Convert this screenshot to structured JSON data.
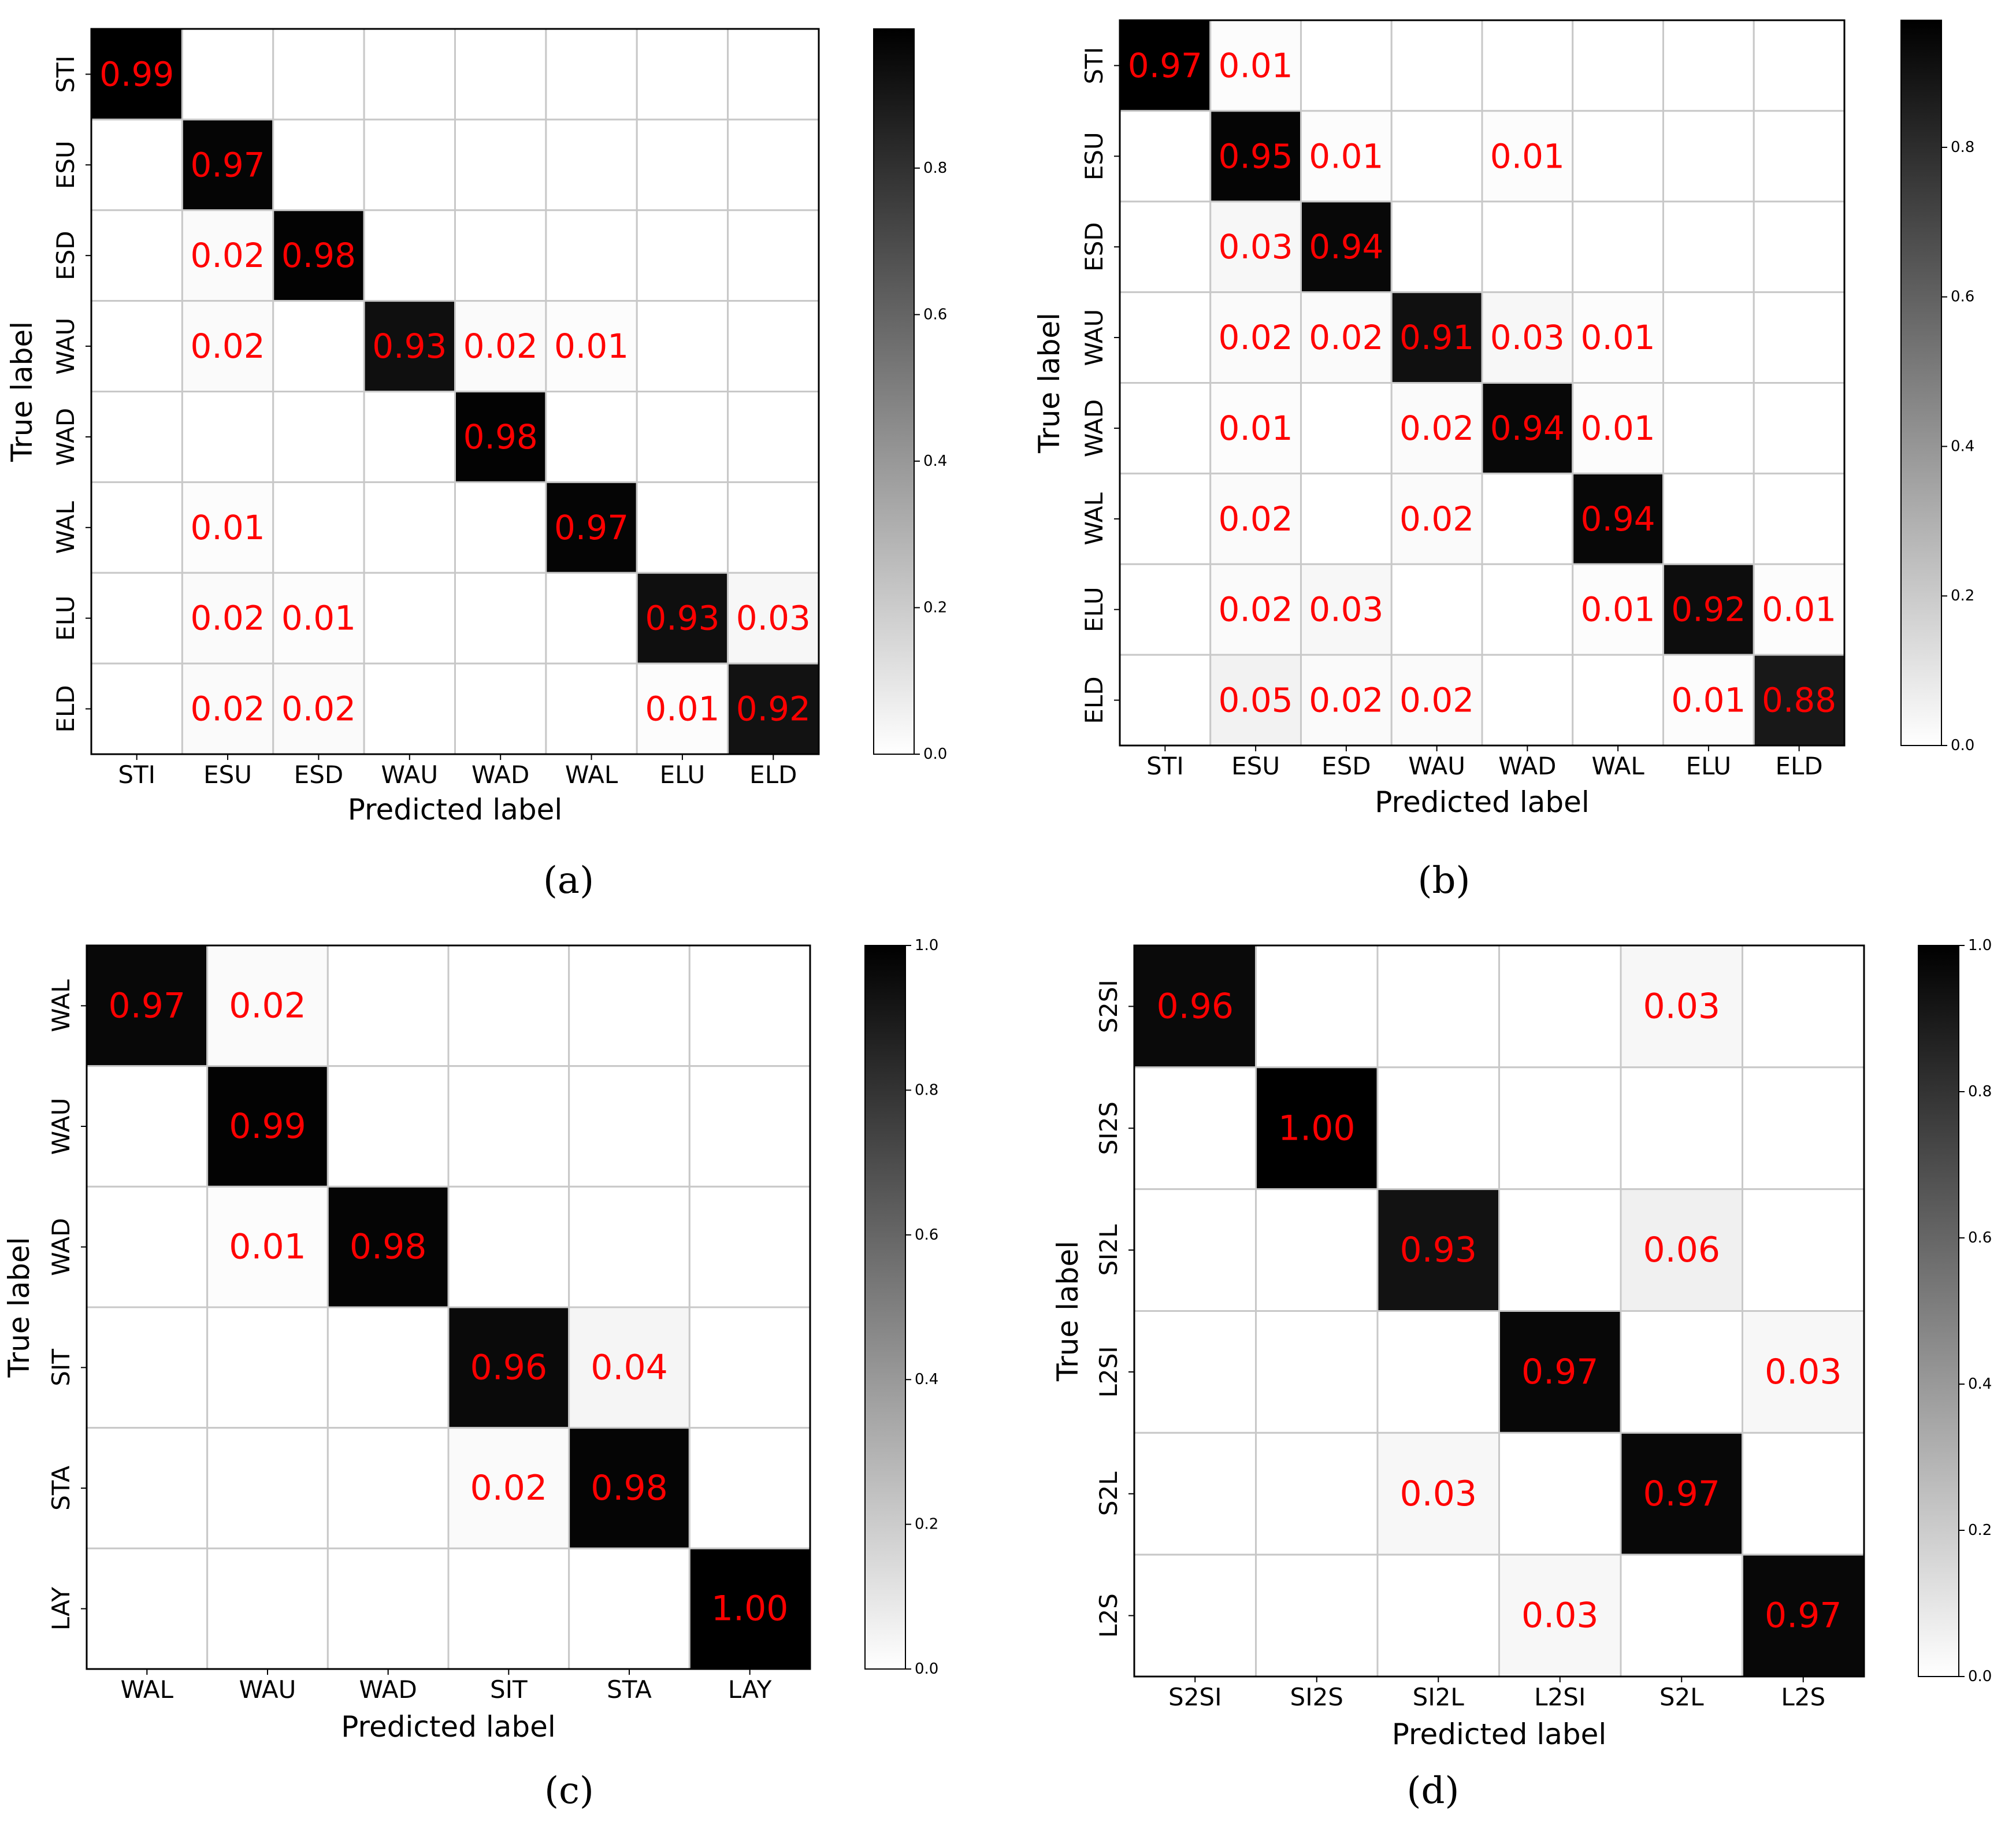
{
  "chart_data": [
    {
      "type": "heatmap",
      "caption": "(a)",
      "xlabel": "Predicted label",
      "ylabel": "True label",
      "x_categories": [
        "STI",
        "ESU",
        "ESD",
        "WAU",
        "WAD",
        "WAL",
        "ELU",
        "ELD"
      ],
      "y_categories": [
        "STI",
        "ESU",
        "ESD",
        "WAU",
        "WAD",
        "WAL",
        "ELU",
        "ELD"
      ],
      "values": [
        [
          0.99,
          0,
          0,
          0,
          0,
          0,
          0,
          0
        ],
        [
          0,
          0.97,
          0,
          0,
          0,
          0,
          0,
          0
        ],
        [
          0,
          0.02,
          0.98,
          0,
          0,
          0,
          0,
          0
        ],
        [
          0,
          0.02,
          0,
          0.93,
          0.02,
          0.01,
          0,
          0
        ],
        [
          0,
          0,
          0,
          0,
          0.98,
          0,
          0,
          0
        ],
        [
          0,
          0.01,
          0,
          0,
          0,
          0.97,
          0,
          0
        ],
        [
          0,
          0.02,
          0.01,
          0,
          0,
          0,
          0.93,
          0.03
        ],
        [
          0,
          0.02,
          0.02,
          0,
          0,
          0,
          0.01,
          0.92
        ]
      ],
      "colorbar": {
        "range": [
          0,
          0.99
        ],
        "ticks": [
          "0.0",
          "0.2",
          "0.4",
          "0.6",
          "0.8"
        ]
      }
    },
    {
      "type": "heatmap",
      "caption": "(b)",
      "xlabel": "Predicted label",
      "ylabel": "True label",
      "x_categories": [
        "STI",
        "ESU",
        "ESD",
        "WAU",
        "WAD",
        "WAL",
        "ELU",
        "ELD"
      ],
      "y_categories": [
        "STI",
        "ESU",
        "ESD",
        "WAU",
        "WAD",
        "WAL",
        "ELU",
        "ELD"
      ],
      "values": [
        [
          0.97,
          0.01,
          0,
          0,
          0,
          0,
          0,
          0
        ],
        [
          0,
          0.95,
          0.01,
          0,
          0.01,
          0,
          0,
          0
        ],
        [
          0,
          0.03,
          0.94,
          0,
          0,
          0,
          0,
          0
        ],
        [
          0,
          0.02,
          0.02,
          0.91,
          0.03,
          0.01,
          0,
          0
        ],
        [
          0,
          0.01,
          0,
          0.02,
          0.94,
          0.01,
          0,
          0
        ],
        [
          0,
          0.02,
          0,
          0.02,
          0,
          0.94,
          0,
          0
        ],
        [
          0,
          0.02,
          0.03,
          0,
          0,
          0.01,
          0.92,
          0.01
        ],
        [
          0,
          0.05,
          0.02,
          0.02,
          0,
          0,
          0.01,
          0.88
        ]
      ],
      "colorbar": {
        "range": [
          0,
          0.97
        ],
        "ticks": [
          "0.0",
          "0.2",
          "0.4",
          "0.6",
          "0.8"
        ]
      }
    },
    {
      "type": "heatmap",
      "caption": "(c)",
      "xlabel": "Predicted label",
      "ylabel": "True label",
      "x_categories": [
        "WAL",
        "WAU",
        "WAD",
        "SIT",
        "STA",
        "LAY"
      ],
      "y_categories": [
        "WAL",
        "WAU",
        "WAD",
        "SIT",
        "STA",
        "LAY"
      ],
      "values": [
        [
          0.97,
          0.02,
          0,
          0,
          0,
          0
        ],
        [
          0,
          0.99,
          0,
          0,
          0,
          0
        ],
        [
          0,
          0.01,
          0.98,
          0,
          0,
          0
        ],
        [
          0,
          0,
          0,
          0.96,
          0.04,
          0
        ],
        [
          0,
          0,
          0,
          0.02,
          0.98,
          0
        ],
        [
          0,
          0,
          0,
          0,
          0,
          1.0
        ]
      ],
      "colorbar": {
        "range": [
          0,
          1.0
        ],
        "ticks": [
          "0.0",
          "0.2",
          "0.4",
          "0.6",
          "0.8",
          "1.0"
        ]
      }
    },
    {
      "type": "heatmap",
      "caption": "(d)",
      "xlabel": "Predicted label",
      "ylabel": "True label",
      "x_categories": [
        "S2SI",
        "SI2S",
        "SI2L",
        "L2SI",
        "S2L",
        "L2S"
      ],
      "y_categories": [
        "S2SI",
        "SI2S",
        "SI2L",
        "L2SI",
        "S2L",
        "L2S"
      ],
      "values": [
        [
          0.96,
          0,
          0,
          0,
          0.03,
          0
        ],
        [
          0,
          1.0,
          0,
          0,
          0,
          0
        ],
        [
          0,
          0,
          0.93,
          0,
          0.06,
          0
        ],
        [
          0,
          0,
          0,
          0.97,
          0,
          0.03
        ],
        [
          0,
          0,
          0.03,
          0,
          0.97,
          0
        ],
        [
          0,
          0,
          0,
          0.03,
          0,
          0.97
        ]
      ],
      "colorbar": {
        "range": [
          0,
          1.0
        ],
        "ticks": [
          "0.0",
          "0.2",
          "0.4",
          "0.6",
          "0.8",
          "1.0"
        ]
      }
    }
  ],
  "colors": {
    "text_on_cells": "#ff0000",
    "axes": "#000000",
    "grid": "#c8c8c8",
    "tick_label": "#000000"
  }
}
